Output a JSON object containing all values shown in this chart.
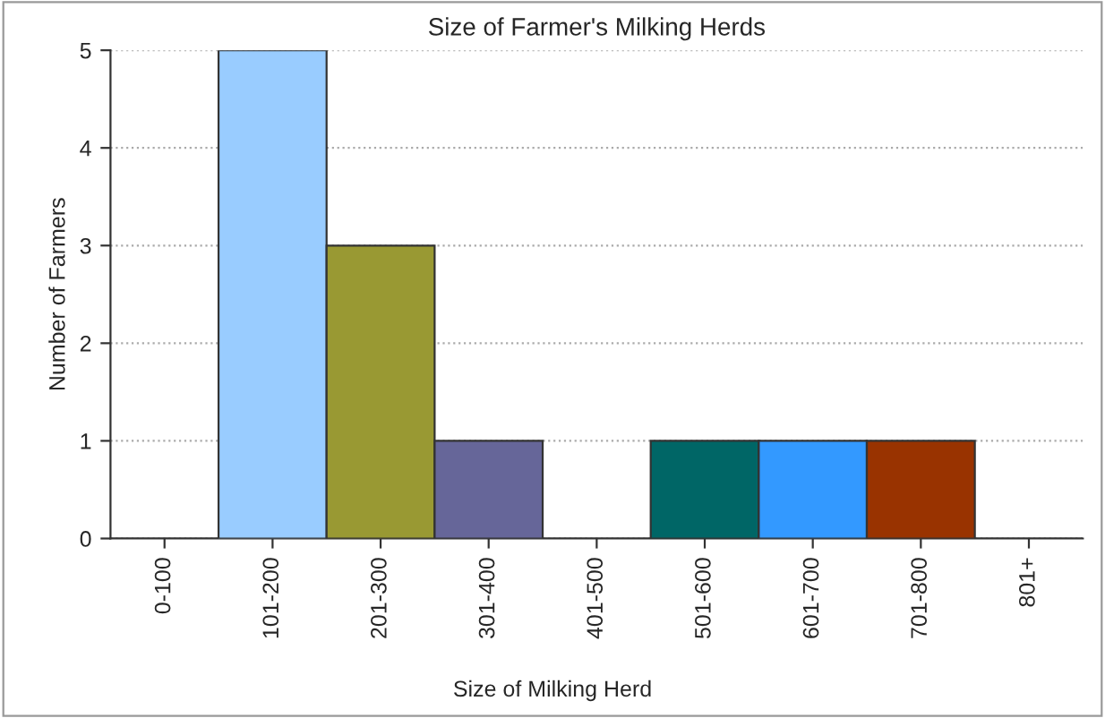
{
  "chart_data": {
    "type": "bar",
    "title": "Size of Farmer's Milking Herds",
    "xlabel": "Size of Milking Herd",
    "ylabel": "Number of Farmers",
    "categories": [
      "0-100",
      "101-200",
      "201-300",
      "301-400",
      "401-500",
      "501-600",
      "601-700",
      "701-800",
      "801+"
    ],
    "values": [
      0,
      5,
      3,
      1,
      0,
      1,
      1,
      1,
      0
    ],
    "colors": [
      null,
      "#99ccff",
      "#999933",
      "#666699",
      null,
      "#006666",
      "#3399ff",
      "#993300",
      null
    ],
    "ylim": [
      0,
      5
    ],
    "yticks": [
      0,
      1,
      2,
      3,
      4,
      5
    ],
    "grid": "y"
  }
}
